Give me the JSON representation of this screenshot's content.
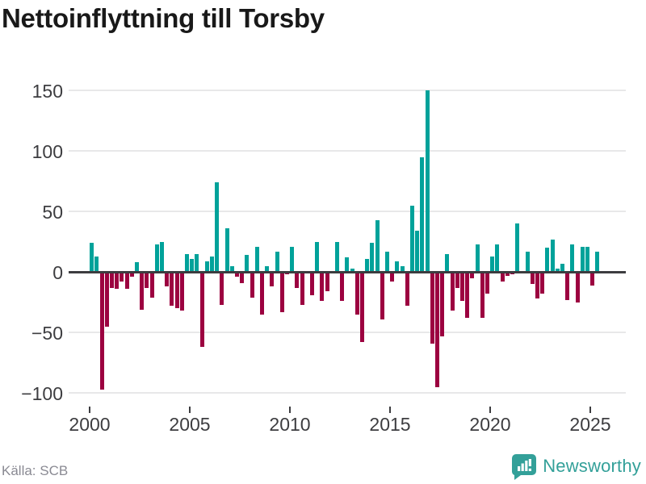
{
  "header": {
    "title": "Nettoinflyttning till Torsby"
  },
  "footer": {
    "source": "Källa: SCB",
    "brand": "Newsworthy",
    "brand_icon": "bar-chart-speech-bubble-icon"
  },
  "colors": {
    "positive": "#00a29a",
    "negative": "#9c0140",
    "brand": "#33a099",
    "gridline": "#e8e8e9",
    "zero_line": "#3d3d40"
  },
  "chart_data": {
    "type": "bar",
    "title": "Nettoinflyttning till Torsby",
    "xlabel": "",
    "ylabel": "",
    "grid": true,
    "legend": false,
    "ylim": [
      -122,
      165
    ],
    "y_axis": {
      "ticks": [
        {
          "v": 150,
          "label": "150"
        },
        {
          "v": 100,
          "label": "100"
        },
        {
          "v": 50,
          "label": "50"
        },
        {
          "v": 0,
          "label": "0"
        },
        {
          "v": -50,
          "label": "−50"
        },
        {
          "v": -100,
          "label": "−100"
        }
      ]
    },
    "x_axis": {
      "tick_years": [
        2000,
        2005,
        2010,
        2015,
        2020,
        2025
      ],
      "labels": [
        "2000",
        "2005",
        "2010",
        "2015",
        "2020",
        "2025"
      ]
    },
    "unit": "persons per quarter",
    "points": [
      [
        "2000 Q1",
        24
      ],
      [
        "2000 Q2",
        13
      ],
      [
        "2000 Q3",
        -97
      ],
      [
        "2000 Q4",
        -45
      ],
      [
        "2001 Q1",
        -13
      ],
      [
        "2001 Q2",
        -14
      ],
      [
        "2001 Q3",
        -8
      ],
      [
        "2001 Q4",
        -14
      ],
      [
        "2002 Q1",
        -4
      ],
      [
        "2002 Q2",
        8
      ],
      [
        "2002 Q3",
        -31
      ],
      [
        "2002 Q4",
        -13
      ],
      [
        "2003 Q1",
        -21
      ],
      [
        "2003 Q2",
        23
      ],
      [
        "2003 Q3",
        25
      ],
      [
        "2003 Q4",
        -12
      ],
      [
        "2004 Q1",
        -28
      ],
      [
        "2004 Q2",
        -30
      ],
      [
        "2004 Q3",
        -32
      ],
      [
        "2004 Q4",
        15
      ],
      [
        "2005 Q1",
        11
      ],
      [
        "2005 Q2",
        15
      ],
      [
        "2005 Q3",
        -62
      ],
      [
        "2005 Q4",
        9
      ],
      [
        "2006 Q1",
        13
      ],
      [
        "2006 Q2",
        74
      ],
      [
        "2006 Q3",
        -27
      ],
      [
        "2006 Q4",
        36
      ],
      [
        "2007 Q1",
        5
      ],
      [
        "2007 Q2",
        -4
      ],
      [
        "2007 Q3",
        -9
      ],
      [
        "2007 Q4",
        14
      ],
      [
        "2008 Q1",
        -21
      ],
      [
        "2008 Q2",
        21
      ],
      [
        "2008 Q3",
        -35
      ],
      [
        "2008 Q4",
        5
      ],
      [
        "2009 Q1",
        -12
      ],
      [
        "2009 Q2",
        17
      ],
      [
        "2009 Q3",
        -33
      ],
      [
        "2009 Q4",
        -2
      ],
      [
        "2010 Q1",
        21
      ],
      [
        "2010 Q2",
        -13
      ],
      [
        "2010 Q3",
        -27
      ],
      [
        "2010 Q4",
        0
      ],
      [
        "2011 Q1",
        -19
      ],
      [
        "2011 Q2",
        25
      ],
      [
        "2011 Q3",
        -24
      ],
      [
        "2011 Q4",
        -16
      ],
      [
        "2012 Q1",
        0
      ],
      [
        "2012 Q2",
        25
      ],
      [
        "2012 Q3",
        -24
      ],
      [
        "2012 Q4",
        12
      ],
      [
        "2013 Q1",
        3
      ],
      [
        "2013 Q2",
        -35
      ],
      [
        "2013 Q3",
        -58
      ],
      [
        "2013 Q4",
        11
      ],
      [
        "2014 Q1",
        24
      ],
      [
        "2014 Q2",
        43
      ],
      [
        "2014 Q3",
        -39
      ],
      [
        "2014 Q4",
        17
      ],
      [
        "2015 Q1",
        -8
      ],
      [
        "2015 Q2",
        9
      ],
      [
        "2015 Q3",
        5
      ],
      [
        "2015 Q4",
        -28
      ],
      [
        "2016 Q1",
        55
      ],
      [
        "2016 Q2",
        34
      ],
      [
        "2016 Q3",
        95
      ],
      [
        "2016 Q4",
        150
      ],
      [
        "2017 Q1",
        -59
      ],
      [
        "2017 Q2",
        -95
      ],
      [
        "2017 Q3",
        -53
      ],
      [
        "2017 Q4",
        15
      ],
      [
        "2018 Q1",
        -32
      ],
      [
        "2018 Q2",
        -13
      ],
      [
        "2018 Q3",
        -24
      ],
      [
        "2018 Q4",
        -38
      ],
      [
        "2019 Q1",
        -5
      ],
      [
        "2019 Q2",
        23
      ],
      [
        "2019 Q3",
        -38
      ],
      [
        "2019 Q4",
        -18
      ],
      [
        "2020 Q1",
        13
      ],
      [
        "2020 Q2",
        23
      ],
      [
        "2020 Q3",
        -8
      ],
      [
        "2020 Q4",
        -3
      ],
      [
        "2021 Q1",
        -2
      ],
      [
        "2021 Q2",
        40
      ],
      [
        "2021 Q3",
        0
      ],
      [
        "2021 Q4",
        17
      ],
      [
        "2022 Q1",
        -10
      ],
      [
        "2022 Q2",
        -22
      ],
      [
        "2022 Q3",
        -18
      ],
      [
        "2022 Q4",
        20
      ],
      [
        "2023 Q1",
        27
      ],
      [
        "2023 Q2",
        3
      ],
      [
        "2023 Q3",
        7
      ],
      [
        "2023 Q4",
        -23
      ],
      [
        "2024 Q1",
        23
      ],
      [
        "2024 Q2",
        -25
      ],
      [
        "2024 Q3",
        21
      ],
      [
        "2024 Q4",
        21
      ],
      [
        "2025 Q1",
        -11
      ],
      [
        "2025 Q2",
        17
      ]
    ]
  }
}
